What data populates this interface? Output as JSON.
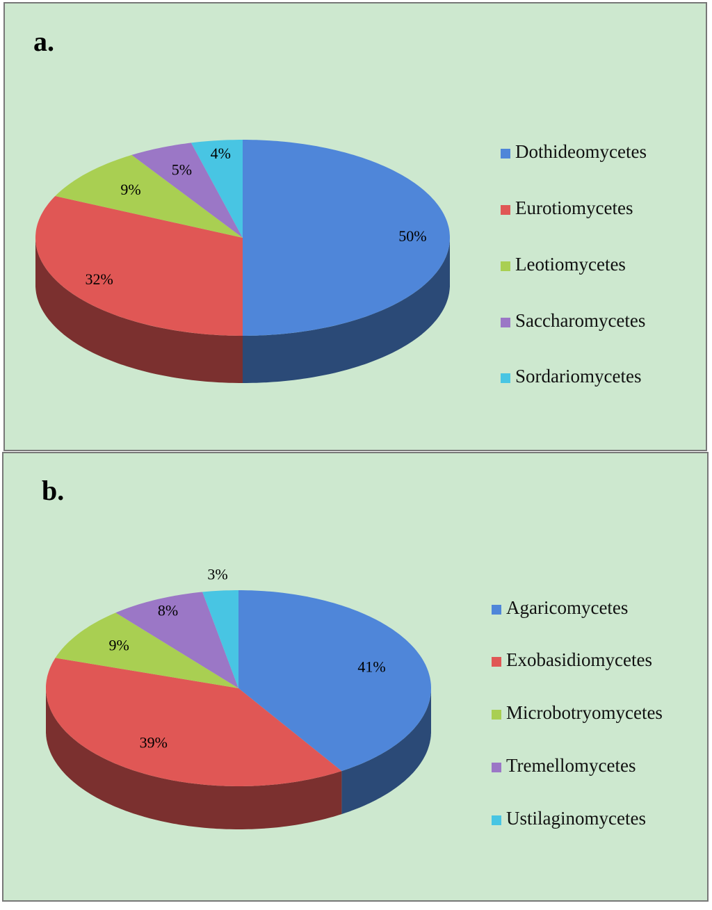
{
  "chart_data": [
    {
      "type": "pie",
      "title": "a.",
      "categories": [
        "Dothideomycetes",
        "Eurotiomycetes",
        "Leotiomycetes",
        "Saccharomycetes",
        "Sordariomycetes"
      ],
      "values": [
        50,
        32,
        9,
        5,
        4
      ],
      "value_labels": [
        "50%",
        "32%",
        "9%",
        "5%",
        "4%"
      ],
      "colors": [
        "#4f86d9",
        "#e05755",
        "#a9cf52",
        "#9b77c6",
        "#48c5e3"
      ]
    },
    {
      "type": "pie",
      "title": "b.",
      "categories": [
        "Agaricomycetes",
        "Exobasidiomycetes",
        "Microbotryomycetes",
        "Tremellomycetes",
        "Ustilaginomycetes"
      ],
      "values": [
        41,
        39,
        9,
        8,
        3
      ],
      "value_labels": [
        "41%",
        "39%",
        "9%",
        "8%",
        "3%"
      ],
      "colors": [
        "#4f86d9",
        "#e05755",
        "#a9cf52",
        "#9b77c6",
        "#48c5e3"
      ]
    }
  ]
}
